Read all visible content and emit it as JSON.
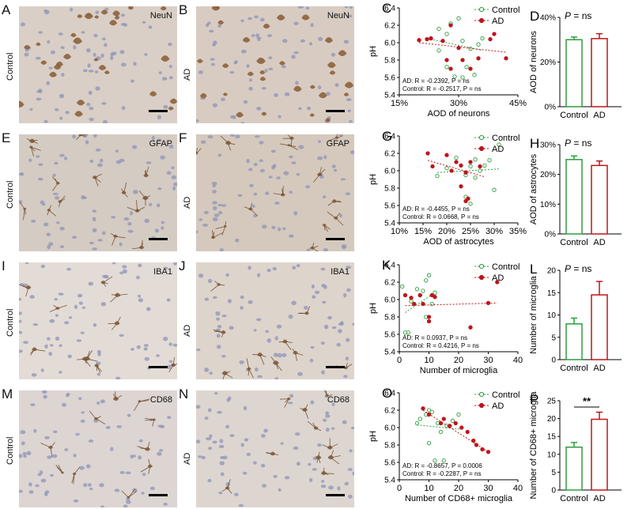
{
  "panels": {
    "A": {
      "letter": "A",
      "stain": "NeuN",
      "group": "Control",
      "bg": "#d9cfc6"
    },
    "B": {
      "letter": "B",
      "stain": "NeuN",
      "group": "AD",
      "bg": "#d8ccc2"
    },
    "E": {
      "letter": "E",
      "stain": "GFAP",
      "group": "Control",
      "bg": "#d4cbc2"
    },
    "F": {
      "letter": "F",
      "stain": "GFAP",
      "group": "AD",
      "bg": "#d5c9bd"
    },
    "I": {
      "letter": "I",
      "stain": "IBA1",
      "group": "Control",
      "bg": "#e3dcd6"
    },
    "J": {
      "letter": "J",
      "stain": "IBA1",
      "group": "AD",
      "bg": "#ddd4cc"
    },
    "M": {
      "letter": "M",
      "stain": "CD68",
      "group": "Control",
      "bg": "#dcd5d2"
    },
    "N": {
      "letter": "N",
      "stain": "CD68",
      "group": "AD",
      "bg": "#ddd6d0"
    }
  },
  "colors": {
    "control": "#2e9e3e",
    "ad": "#c0151b"
  },
  "chart_data": [
    {
      "id": "C",
      "type": "scatter",
      "letter": "C",
      "xlabel": "AOD of neurons",
      "ylabel": "pH",
      "xlim": [
        15,
        45
      ],
      "ylim": [
        5.4,
        6.4
      ],
      "xticks": [
        "15%",
        "30%",
        "45%"
      ],
      "xtick_values": [
        15,
        30,
        45
      ],
      "yticks": [
        "5.4",
        "5.6",
        "5.8",
        "6.0",
        "6.2",
        "6.4"
      ],
      "series": [
        {
          "name": "Control",
          "marker": "open-circle",
          "points": [
            [
              23,
              6.05
            ],
            [
              25,
              6.16
            ],
            [
              27,
              6.1
            ],
            [
              28,
              6.22
            ],
            [
              30,
              6.28
            ],
            [
              31,
              6.02
            ],
            [
              33,
              5.93
            ],
            [
              35,
              5.98
            ],
            [
              36,
              6.05
            ],
            [
              25,
              5.91
            ],
            [
              27,
              5.72
            ],
            [
              29,
              5.61
            ],
            [
              31,
              5.6
            ],
            [
              34,
              5.63
            ],
            [
              32,
              5.72
            ]
          ],
          "fit": [
            [
              22,
              6.05
            ],
            [
              36,
              5.91
            ]
          ]
        },
        {
          "name": "AD",
          "marker": "filled-circle",
          "points": [
            [
              20,
              6.03
            ],
            [
              22,
              6.04
            ],
            [
              23,
              6.05
            ],
            [
              26,
              6.02
            ],
            [
              28,
              6.2
            ],
            [
              30,
              5.94
            ],
            [
              31,
              5.8
            ],
            [
              33,
              5.7
            ],
            [
              35,
              5.82
            ],
            [
              38,
              6.04
            ],
            [
              39,
              6.1
            ],
            [
              42,
              5.82
            ],
            [
              27,
              5.8
            ],
            [
              28,
              5.7
            ]
          ],
          "fit": [
            [
              20,
              6.0
            ],
            [
              42,
              5.89
            ]
          ]
        }
      ],
      "annotations": [
        "AD:  R = -0.2392, P = ns",
        "Control:  R = -0.2517, P = ns"
      ]
    },
    {
      "id": "D",
      "type": "bar",
      "letter": "D",
      "ylabel": "AOD of neurons",
      "categories": [
        "Control",
        "AD"
      ],
      "values": [
        30,
        30.5
      ],
      "errors": [
        1.2,
        2.2
      ],
      "ylim": [
        0,
        40
      ],
      "yticks": [
        "0%",
        "20%",
        "40%"
      ],
      "ytick_values": [
        0,
        20,
        40
      ],
      "annotations": [
        "P = ns"
      ]
    },
    {
      "id": "G",
      "type": "scatter",
      "letter": "G",
      "xlabel": "AOD of astrocytes",
      "ylabel": "pH",
      "xlim": [
        10,
        35
      ],
      "ylim": [
        5.4,
        6.4
      ],
      "xticks": [
        "10%",
        "15%",
        "20%",
        "25%",
        "30%",
        "35%"
      ],
      "xtick_values": [
        10,
        15,
        20,
        25,
        30,
        35
      ],
      "yticks": [
        "5.4",
        "5.6",
        "5.8",
        "6.0",
        "6.2",
        "6.4"
      ],
      "series": [
        {
          "name": "Control",
          "marker": "open-circle",
          "points": [
            [
              18,
              5.94
            ],
            [
              20,
              6.03
            ],
            [
              22,
              6.15
            ],
            [
              24,
              5.95
            ],
            [
              25,
              6.05
            ],
            [
              26,
              5.92
            ],
            [
              27,
              6.0
            ],
            [
              28,
              6.06
            ],
            [
              29,
              6.12
            ],
            [
              31,
              6.3
            ],
            [
              24,
              5.7
            ],
            [
              25,
              5.62
            ],
            [
              30,
              5.78
            ],
            [
              26,
              6.13
            ]
          ],
          "fit": [
            [
              18,
              5.98
            ],
            [
              31,
              6.02
            ]
          ]
        },
        {
          "name": "AD",
          "marker": "filled-circle",
          "points": [
            [
              16,
              6.2
            ],
            [
              17,
              6.05
            ],
            [
              20,
              6.18
            ],
            [
              22,
              6.1
            ],
            [
              23,
              6.06
            ],
            [
              24,
              5.98
            ],
            [
              23,
              5.82
            ],
            [
              24,
              5.65
            ],
            [
              24.5,
              5.68
            ],
            [
              27,
              6.05
            ],
            [
              25,
              6.1
            ],
            [
              21,
              6.0
            ]
          ],
          "fit": [
            [
              16,
              6.12
            ],
            [
              28,
              5.93
            ]
          ]
        }
      ],
      "annotations": [
        "AD:  R = -0.4455, P = ns",
        "Control:  R = 0.0668, P = ns"
      ]
    },
    {
      "id": "H",
      "type": "bar",
      "letter": "H",
      "ylabel": "AOD of astrocytes",
      "categories": [
        "Control",
        "AD"
      ],
      "values": [
        25,
        23
      ],
      "errors": [
        1.2,
        1.5
      ],
      "ylim": [
        0,
        30
      ],
      "yticks": [
        "0%",
        "10%",
        "20%",
        "30%"
      ],
      "ytick_values": [
        0,
        10,
        20,
        30
      ],
      "annotations": [
        "P = ns"
      ]
    },
    {
      "id": "K",
      "type": "scatter",
      "letter": "K",
      "xlabel": "Number of microglia",
      "ylabel": "pH",
      "xlim": [
        0,
        40
      ],
      "ylim": [
        5.4,
        6.4
      ],
      "xticks": [
        "0",
        "10",
        "20",
        "30",
        "40"
      ],
      "xtick_values": [
        0,
        10,
        20,
        30,
        40
      ],
      "yticks": [
        "5.4",
        "5.6",
        "5.8",
        "6.0",
        "6.2",
        "6.4"
      ],
      "series": [
        {
          "name": "Control",
          "marker": "open-circle",
          "points": [
            [
              1,
              6.15
            ],
            [
              2,
              6.05
            ],
            [
              4,
              5.98
            ],
            [
              6,
              6.12
            ],
            [
              7,
              6.05
            ],
            [
              8,
              6.1
            ],
            [
              9,
              6.22
            ],
            [
              10,
              6.28
            ],
            [
              11,
              5.95
            ],
            [
              12,
              6.08
            ],
            [
              9,
              5.8
            ],
            [
              3,
              5.62
            ],
            [
              2,
              5.62
            ]
          ],
          "fit": [
            [
              2,
              5.85
            ],
            [
              12,
              6.08
            ]
          ]
        },
        {
          "name": "AD",
          "marker": "filled-circle",
          "points": [
            [
              2,
              6.05
            ],
            [
              5,
              5.95
            ],
            [
              7,
              6.05
            ],
            [
              8,
              5.95
            ],
            [
              10,
              5.8
            ],
            [
              11,
              6.05
            ],
            [
              12,
              6.03
            ],
            [
              10,
              5.75
            ],
            [
              24,
              5.68
            ],
            [
              30,
              5.96
            ],
            [
              33,
              6.2
            ],
            [
              4,
              6.02
            ]
          ],
          "fit": [
            [
              2,
              5.93
            ],
            [
              33,
              5.96
            ]
          ]
        }
      ],
      "annotations": [
        "AD:  R = 0.0937, P = ns",
        "Control:  R = 0.4216, P = ns"
      ]
    },
    {
      "id": "L",
      "type": "bar",
      "letter": "L",
      "ylabel": "Number of microglia",
      "categories": [
        "Control",
        "AD"
      ],
      "values": [
        8,
        14.5
      ],
      "errors": [
        1.3,
        3
      ],
      "ylim": [
        0,
        20
      ],
      "yticks": [
        "0",
        "5",
        "10",
        "15",
        "20"
      ],
      "ytick_values": [
        0,
        5,
        10,
        15,
        20
      ],
      "annotations": [
        "P = ns"
      ]
    },
    {
      "id": "O",
      "type": "scatter",
      "letter": "O",
      "xlabel": "Number of CD68+ microglia",
      "ylabel": "pH",
      "xlim": [
        0,
        40
      ],
      "ylim": [
        5.4,
        6.4
      ],
      "xticks": [
        "0",
        "10",
        "20",
        "30",
        "40"
      ],
      "xtick_values": [
        0,
        10,
        20,
        30,
        40
      ],
      "yticks": [
        "5.4",
        "5.6",
        "5.8",
        "6.0",
        "6.2",
        "6.4"
      ],
      "series": [
        {
          "name": "Control",
          "marker": "open-circle",
          "points": [
            [
              6,
              6.05
            ],
            [
              7,
              6.1
            ],
            [
              9,
              6.15
            ],
            [
              10,
              6.2
            ],
            [
              11,
              6.18
            ],
            [
              13,
              6.05
            ],
            [
              14,
              5.95
            ],
            [
              16,
              6.02
            ],
            [
              18,
              6.08
            ],
            [
              20,
              6.15
            ],
            [
              10,
              5.82
            ],
            [
              12,
              5.62
            ],
            [
              15,
              5.62
            ]
          ],
          "fit": [
            [
              6,
              6.03
            ],
            [
              21,
              5.98
            ]
          ]
        },
        {
          "name": "AD",
          "marker": "filled-circle",
          "points": [
            [
              8,
              6.22
            ],
            [
              10,
              6.15
            ],
            [
              14,
              6.05
            ],
            [
              15,
              6.1
            ],
            [
              17,
              6.02
            ],
            [
              19,
              6.05
            ],
            [
              21,
              6.0
            ],
            [
              23,
              5.95
            ],
            [
              25,
              5.85
            ],
            [
              26,
              5.8
            ],
            [
              28,
              5.75
            ],
            [
              30,
              5.72
            ]
          ],
          "fit": [
            [
              8,
              6.2
            ],
            [
              30,
              5.72
            ]
          ]
        }
      ],
      "annotations": [
        "AD:  R = -0.8657, P = 0.0006",
        "Control:  R = -0.2287, P = ns"
      ]
    },
    {
      "id": "P",
      "type": "bar",
      "letter": "P",
      "ylabel": "Number of CD68+ microglia",
      "categories": [
        "Control",
        "AD"
      ],
      "values": [
        12,
        19.8
      ],
      "errors": [
        1.3,
        2
      ],
      "ylim": [
        0,
        25
      ],
      "yticks": [
        "0",
        "5",
        "10",
        "15",
        "20",
        "25"
      ],
      "ytick_values": [
        0,
        5,
        10,
        15,
        20,
        25
      ],
      "annotations": [
        "**"
      ]
    }
  ]
}
